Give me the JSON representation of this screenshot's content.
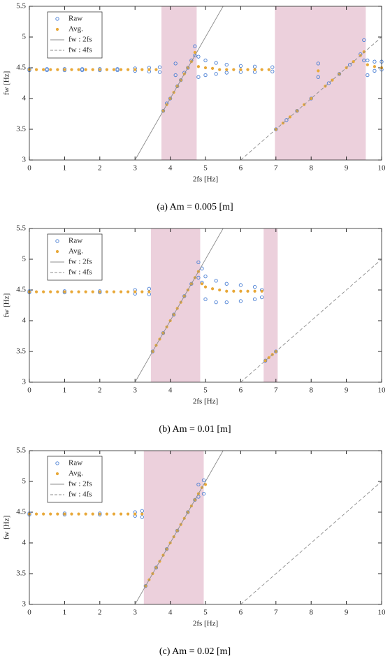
{
  "chart_data": [
    {
      "type": "scatter",
      "caption": "(a) Am = 0.005 [m]",
      "x_label": "2fs [Hz]",
      "y_label": "fw [Hz]",
      "xlim": [
        0,
        10
      ],
      "ylim": [
        3,
        5.5
      ],
      "xticks": [
        0,
        1,
        2,
        3,
        4,
        5,
        6,
        7,
        8,
        9,
        10
      ],
      "yticks": [
        3,
        3.5,
        4,
        4.5,
        5,
        5.5
      ],
      "highlight_ranges": [
        [
          3.75,
          4.75
        ],
        [
          6.97,
          9.55
        ]
      ],
      "highlight_color": "#ecd0dc",
      "legend": "upper left",
      "series": [
        {
          "name": "Raw",
          "marker": "open-circle",
          "color": "#4a7fd4",
          "x": [
            0,
            0,
            0.5,
            0.5,
            1,
            1,
            1.5,
            1.5,
            2,
            2,
            2.5,
            2.5,
            3,
            3,
            3.4,
            3.4,
            3.7,
            3.7,
            3.8,
            3.9,
            4,
            4.15,
            4.15,
            4.2,
            4.3,
            4.4,
            4.5,
            4.6,
            4.7,
            4.7,
            4.8,
            4.8,
            5,
            5,
            5.3,
            5.3,
            5.6,
            5.6,
            6,
            6,
            6.4,
            6.4,
            6.9,
            6.9,
            7,
            7.3,
            7.6,
            8,
            8.2,
            8.2,
            8.5,
            8.8,
            9.1,
            9.4,
            9.5,
            9.5,
            9.6,
            9.6,
            9.8,
            9.8,
            10,
            10
          ],
          "values": [
            4.46,
            4.48,
            4.46,
            4.48,
            4.46,
            4.48,
            4.46,
            4.48,
            4.46,
            4.48,
            4.46,
            4.48,
            4.45,
            4.49,
            4.44,
            4.5,
            4.43,
            4.51,
            3.8,
            3.92,
            4,
            4.38,
            4.57,
            4.2,
            4.3,
            4.42,
            4.5,
            4.62,
            4.7,
            4.85,
            4.35,
            4.68,
            4.38,
            4.62,
            4.4,
            4.58,
            4.42,
            4.55,
            4.43,
            4.53,
            4.43,
            4.52,
            4.44,
            4.51,
            3.5,
            3.65,
            3.8,
            4,
            4.35,
            4.57,
            4.25,
            4.4,
            4.55,
            4.72,
            4.62,
            4.95,
            4.38,
            4.62,
            4.45,
            4.6,
            4.47,
            4.6
          ]
        },
        {
          "name": "Avg.",
          "marker": "dot",
          "color": "#e8a838",
          "x": [
            0,
            0.2,
            0.4,
            0.6,
            0.8,
            1,
            1.2,
            1.4,
            1.6,
            1.8,
            2,
            2.2,
            2.4,
            2.6,
            2.8,
            3,
            3.2,
            3.4,
            3.6,
            3.8,
            3.9,
            4,
            4.1,
            4.2,
            4.3,
            4.4,
            4.5,
            4.6,
            4.7,
            4.8,
            5,
            5.2,
            5.4,
            5.6,
            5.8,
            6,
            6.2,
            6.4,
            6.6,
            6.8,
            7,
            7.2,
            7.4,
            7.6,
            7.8,
            8,
            8.2,
            8.4,
            8.6,
            8.8,
            9,
            9.2,
            9.4,
            9.5,
            9.6,
            9.8,
            10
          ],
          "values": [
            4.47,
            4.47,
            4.47,
            4.47,
            4.47,
            4.47,
            4.47,
            4.47,
            4.47,
            4.47,
            4.47,
            4.47,
            4.47,
            4.47,
            4.47,
            4.47,
            4.47,
            4.47,
            4.47,
            3.8,
            3.9,
            4,
            4.1,
            4.2,
            4.3,
            4.4,
            4.5,
            4.6,
            4.75,
            4.52,
            4.5,
            4.49,
            4.47,
            4.47,
            4.47,
            4.47,
            4.47,
            4.47,
            4.47,
            4.47,
            3.5,
            3.6,
            3.7,
            3.8,
            3.9,
            4,
            4.45,
            4.2,
            4.3,
            4.4,
            4.5,
            4.6,
            4.7,
            4.76,
            4.55,
            4.52,
            4.5
          ]
        },
        {
          "name": "fw : 2fs",
          "line": "solid",
          "color": "#8c8c8c",
          "x": [
            3,
            5.5
          ],
          "values": [
            3,
            5.5
          ]
        },
        {
          "name": "fw : 4fs",
          "line": "dashed",
          "color": "#8c8c8c",
          "x": [
            6,
            10
          ],
          "values": [
            3,
            5
          ]
        }
      ]
    },
    {
      "type": "scatter",
      "caption": "(b) Am = 0.01 [m]",
      "x_label": "2fs [Hz]",
      "y_label": "fw [Hz]",
      "xlim": [
        0,
        10
      ],
      "ylim": [
        3,
        5.5
      ],
      "xticks": [
        0,
        1,
        2,
        3,
        4,
        5,
        6,
        7,
        8,
        9,
        10
      ],
      "yticks": [
        3,
        3.5,
        4,
        4.5,
        5,
        5.5
      ],
      "highlight_ranges": [
        [
          3.45,
          4.85
        ],
        [
          6.65,
          7.05
        ]
      ],
      "highlight_color": "#ecd0dc",
      "legend": "upper left",
      "series": [
        {
          "name": "Raw",
          "marker": "open-circle",
          "color": "#4a7fd4",
          "x": [
            0,
            0,
            1,
            1,
            2,
            2,
            3,
            3,
            3.4,
            3.4,
            3.5,
            3.8,
            4.1,
            4.4,
            4.6,
            4.8,
            4.8,
            4.9,
            4.9,
            5,
            5,
            5.3,
            5.3,
            5.6,
            5.6,
            6,
            6,
            6.4,
            6.4,
            6.6,
            6.6,
            6.7,
            7
          ],
          "values": [
            4.46,
            4.48,
            4.46,
            4.48,
            4.46,
            4.48,
            4.44,
            4.5,
            4.43,
            4.52,
            3.5,
            3.8,
            4.1,
            4.4,
            4.6,
            4.7,
            4.95,
            4.62,
            4.85,
            4.35,
            4.72,
            4.3,
            4.65,
            4.3,
            4.6,
            4.32,
            4.58,
            4.35,
            4.55,
            4.38,
            4.5,
            3.35,
            3.5
          ]
        },
        {
          "name": "Avg.",
          "marker": "dot",
          "color": "#e8a838",
          "x": [
            0,
            0.2,
            0.4,
            0.6,
            0.8,
            1,
            1.2,
            1.4,
            1.6,
            1.8,
            2,
            2.2,
            2.4,
            2.6,
            2.8,
            3,
            3.2,
            3.4,
            3.5,
            3.6,
            3.7,
            3.8,
            3.9,
            4,
            4.1,
            4.2,
            4.3,
            4.4,
            4.5,
            4.6,
            4.7,
            4.8,
            4.9,
            5,
            5.2,
            5.4,
            5.6,
            5.8,
            6,
            6.2,
            6.4,
            6.6,
            6.7,
            6.8,
            6.9,
            7
          ],
          "values": [
            4.47,
            4.47,
            4.47,
            4.47,
            4.47,
            4.47,
            4.47,
            4.47,
            4.47,
            4.47,
            4.47,
            4.47,
            4.47,
            4.47,
            4.47,
            4.47,
            4.47,
            4.47,
            3.5,
            3.6,
            3.7,
            3.8,
            3.9,
            4,
            4.1,
            4.2,
            4.3,
            4.4,
            4.5,
            4.6,
            4.7,
            4.8,
            4.6,
            4.55,
            4.52,
            4.5,
            4.48,
            4.48,
            4.48,
            4.48,
            4.48,
            4.48,
            3.35,
            3.4,
            3.45,
            3.5
          ]
        },
        {
          "name": "fw : 2fs",
          "line": "solid",
          "color": "#8c8c8c",
          "x": [
            3,
            5.5
          ],
          "values": [
            3,
            5.5
          ]
        },
        {
          "name": "fw : 4fs",
          "line": "dashed",
          "color": "#8c8c8c",
          "x": [
            6,
            10
          ],
          "values": [
            3,
            5
          ]
        }
      ]
    },
    {
      "type": "scatter",
      "caption": "(c) Am = 0.02 [m]",
      "x_label": "2fs [Hz]",
      "y_label": "fw [Hz]",
      "xlim": [
        0,
        10
      ],
      "ylim": [
        3,
        5.5
      ],
      "xticks": [
        0,
        1,
        2,
        3,
        4,
        5,
        6,
        7,
        8,
        9,
        10
      ],
      "yticks": [
        3,
        3.5,
        4,
        4.5,
        5,
        5.5
      ],
      "highlight_ranges": [
        [
          3.25,
          4.95
        ]
      ],
      "highlight_color": "#ecd0dc",
      "legend": "upper left",
      "series": [
        {
          "name": "Raw",
          "marker": "open-circle",
          "color": "#4a7fd4",
          "x": [
            0,
            0,
            1,
            1,
            2,
            2,
            3,
            3,
            3.2,
            3.2,
            3.3,
            3.6,
            3.9,
            4.2,
            4.5,
            4.7,
            4.8,
            4.8,
            4.95,
            4.95
          ],
          "values": [
            4.46,
            4.48,
            4.46,
            4.48,
            4.46,
            4.48,
            4.44,
            4.5,
            4.42,
            4.52,
            3.3,
            3.6,
            3.9,
            4.2,
            4.5,
            4.7,
            4.75,
            4.95,
            4.8,
            5.02
          ]
        },
        {
          "name": "Avg.",
          "marker": "dot",
          "color": "#e8a838",
          "x": [
            0,
            0.2,
            0.4,
            0.6,
            0.8,
            1,
            1.2,
            1.4,
            1.6,
            1.8,
            2,
            2.2,
            2.4,
            2.6,
            2.8,
            3,
            3.2,
            3.3,
            3.4,
            3.5,
            3.6,
            3.7,
            3.8,
            3.9,
            4,
            4.1,
            4.2,
            4.3,
            4.4,
            4.5,
            4.6,
            4.7,
            4.8,
            4.9,
            5
          ],
          "values": [
            4.47,
            4.47,
            4.47,
            4.47,
            4.47,
            4.47,
            4.47,
            4.47,
            4.47,
            4.47,
            4.47,
            4.47,
            4.47,
            4.47,
            4.47,
            4.47,
            4.47,
            3.3,
            3.4,
            3.5,
            3.6,
            3.7,
            3.8,
            3.9,
            4,
            4.1,
            4.2,
            4.3,
            4.4,
            4.5,
            4.6,
            4.7,
            4.8,
            4.9,
            4.95
          ]
        },
        {
          "name": "fw : 2fs",
          "line": "solid",
          "color": "#8c8c8c",
          "x": [
            3,
            5.5
          ],
          "values": [
            3,
            5.5
          ]
        },
        {
          "name": "fw : 4fs",
          "line": "dashed",
          "color": "#8c8c8c",
          "x": [
            6,
            10
          ],
          "values": [
            3,
            5
          ]
        }
      ]
    }
  ]
}
